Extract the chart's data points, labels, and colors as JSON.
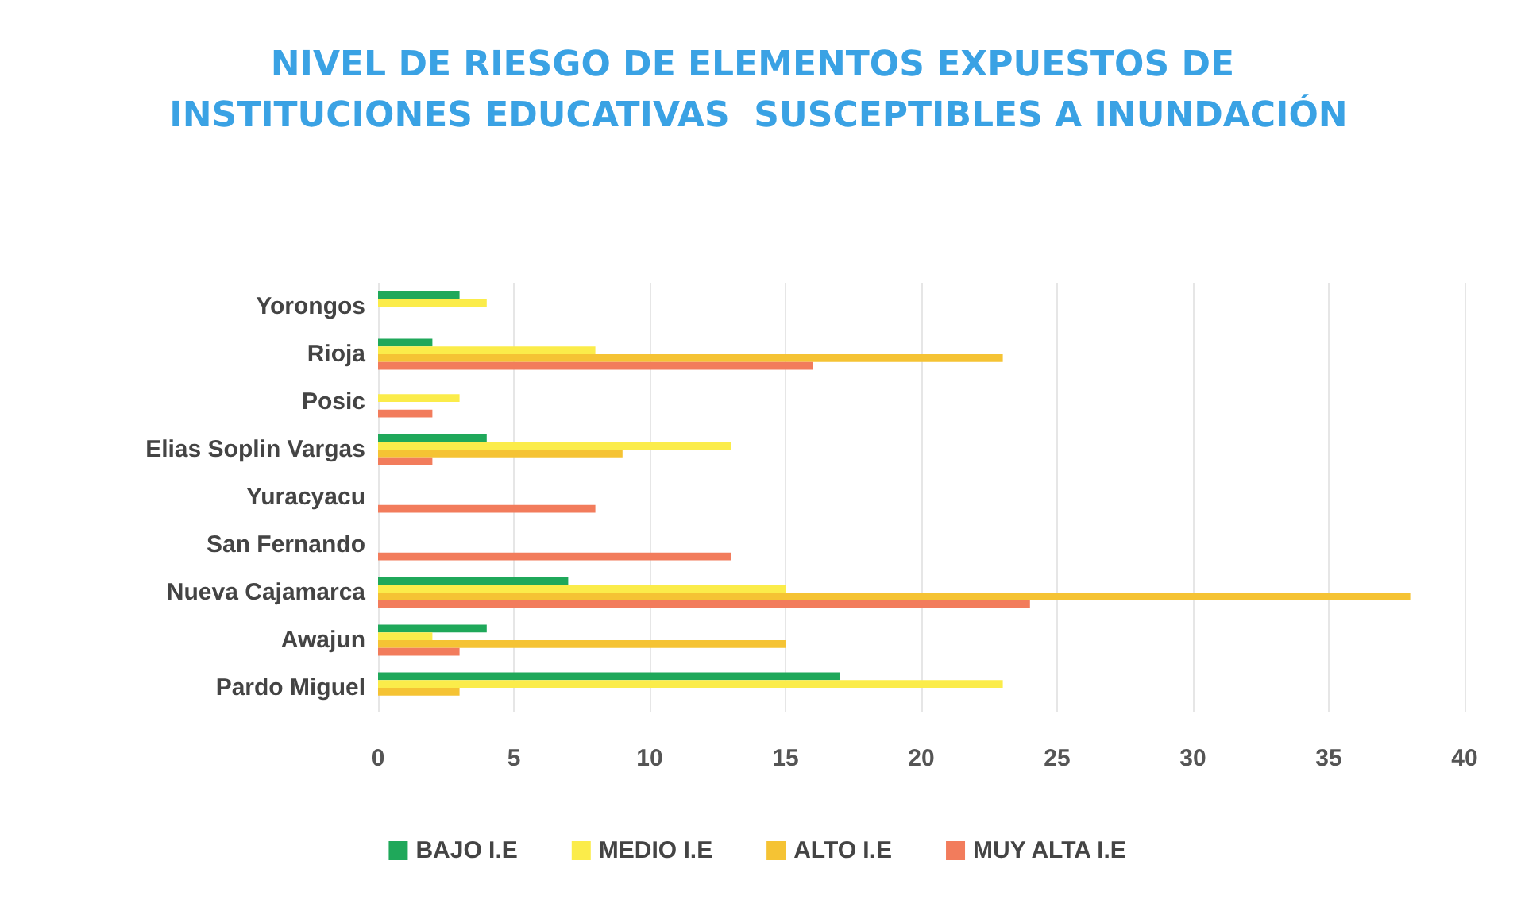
{
  "chart_data": {
    "type": "bar",
    "orientation": "horizontal",
    "title": "NIVEL DE RIESGO DE ELEMENTOS EXPUESTOS DE INSTITUCIONES EDUCATIVAS  SUSCEPTIBLES A INUNDACIÓN",
    "categories": [
      "Yorongos",
      "Rioja",
      "Posic",
      "Elias Soplin Vargas",
      "Yuracyacu",
      "San Fernando",
      "Nueva Cajamarca",
      "Awajun",
      "Pardo Miguel"
    ],
    "series": [
      {
        "name": "BAJO I.E",
        "color": "#1fa85a",
        "values": [
          3,
          2,
          null,
          4,
          null,
          null,
          7,
          4,
          17
        ]
      },
      {
        "name": "MEDIO I.E",
        "color": "#fbec4a",
        "values": [
          4,
          8,
          3,
          13,
          null,
          null,
          15,
          2,
          23
        ]
      },
      {
        "name": "ALTO I.E",
        "color": "#f5c334",
        "values": [
          null,
          23,
          null,
          9,
          null,
          null,
          38,
          15,
          3
        ]
      },
      {
        "name": "MUY ALTA I.E",
        "color": "#f27c5c",
        "values": [
          null,
          16,
          2,
          2,
          8,
          13,
          24,
          3,
          null
        ]
      }
    ],
    "xlim": [
      0,
      40
    ],
    "xticks": [
      0,
      5,
      10,
      15,
      20,
      25,
      30,
      35,
      40
    ],
    "grid": "x",
    "legend": "bottom"
  }
}
